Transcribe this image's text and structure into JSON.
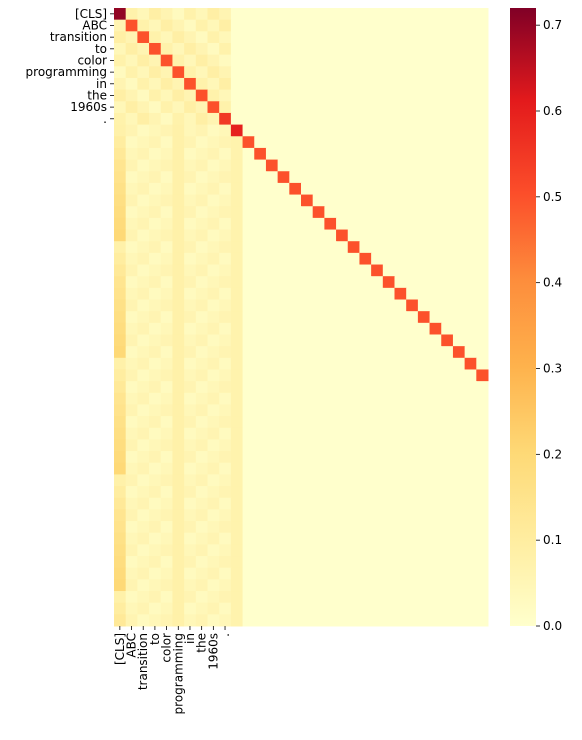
{
  "chart_data": {
    "type": "heatmap",
    "title": "",
    "xlabel": "",
    "ylabel": "",
    "n_rows": 53,
    "n_cols": 32,
    "row_labels": [
      "[CLS]",
      "ABC",
      "transition",
      "to",
      "color",
      "programming",
      "in",
      "the",
      "1960s",
      "."
    ],
    "col_labels": [
      "[CLS]",
      "ABC",
      "transition",
      "to",
      "color",
      "programming",
      "in",
      "the",
      "1960s",
      "."
    ],
    "values_description": "Row i has its peak at column i (diagonal ~0.5, top-left cell ~0.7). Rows 11+ continue the diagonal beyond the labeled region; cells right of column 10 are ~0.",
    "diagonal_values": [
      0.7,
      0.5,
      0.5,
      0.5,
      0.5,
      0.5,
      0.5,
      0.5,
      0.5,
      0.55,
      0.6,
      0.5,
      0.5,
      0.5,
      0.5,
      0.5,
      0.5,
      0.5,
      0.5,
      0.5,
      0.5,
      0.5,
      0.5,
      0.5,
      0.5,
      0.5,
      0.5,
      0.5,
      0.5,
      0.5,
      0.5,
      0.5
    ],
    "first_col_values_after_label_rows": [
      0.08,
      0.1,
      0.12,
      0.14,
      0.15,
      0.16,
      0.17,
      0.18,
      0.19,
      0.2
    ],
    "colorbar": {
      "min": 0.0,
      "max": 0.72,
      "ticks": [
        "0.0",
        "0.1",
        "0.2",
        "0.3",
        "0.4",
        "0.5",
        "0.6",
        "0.7"
      ],
      "colormap": "YlOrRd"
    }
  }
}
